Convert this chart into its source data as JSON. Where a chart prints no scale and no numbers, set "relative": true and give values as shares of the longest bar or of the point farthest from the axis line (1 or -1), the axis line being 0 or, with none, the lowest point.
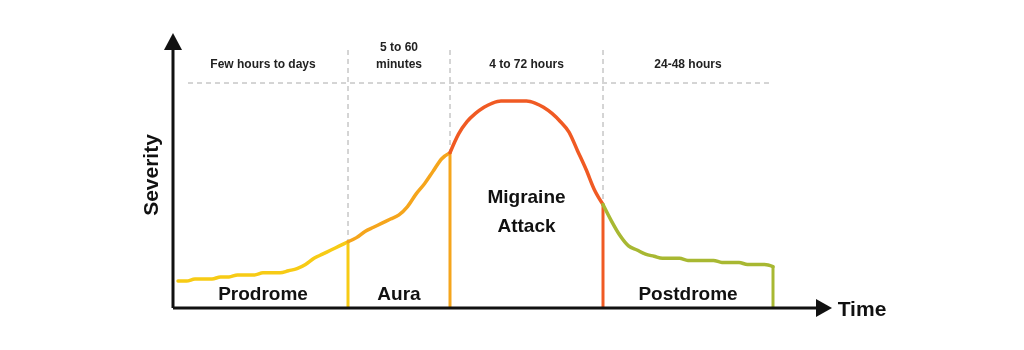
{
  "chart_data": {
    "type": "line",
    "relative": true,
    "xlabel": "Time",
    "ylabel": "Severity",
    "line_style": "solid",
    "grid": true,
    "categories": [
      null,
      null,
      null,
      null,
      null,
      null,
      null,
      null,
      null,
      null,
      null,
      null,
      null,
      null,
      null,
      null,
      null,
      null,
      null,
      null,
      null,
      null,
      null,
      null,
      null,
      null,
      null,
      null,
      null,
      null,
      null,
      null,
      null,
      null,
      null,
      null,
      null,
      null,
      null,
      null,
      null,
      null,
      null,
      null,
      null,
      null,
      null,
      null,
      null,
      null,
      null,
      null,
      null,
      null,
      null,
      null,
      null,
      null,
      null,
      null,
      null,
      null,
      null,
      null,
      null,
      null,
      null,
      null,
      null,
      null,
      null
    ],
    "annotations": [
      "Few hours to days",
      "5 to 60 minutes",
      "4 to 72 hours",
      "24-48 hours"
    ],
    "series": [
      {
        "name": "Prodrome",
        "color": "#f7cb15",
        "values": [
          0.13,
          0.13,
          0.14,
          0.14,
          0.14,
          0.15,
          0.15,
          0.16,
          0.16,
          0.16,
          0.17,
          0.17,
          0.17,
          0.18,
          0.19,
          0.21,
          0.24,
          0.26,
          0.28,
          0.3,
          0.32,
          null,
          null,
          null,
          null,
          null,
          null,
          null,
          null,
          null,
          null,
          null,
          null,
          null,
          null,
          null,
          null,
          null,
          null,
          null,
          null,
          null,
          null,
          null,
          null,
          null,
          null,
          null,
          null,
          null,
          null,
          null,
          null,
          null,
          null,
          null,
          null,
          null,
          null,
          null,
          null,
          null,
          null,
          null,
          null,
          null,
          null,
          null,
          null,
          null,
          null
        ]
      },
      {
        "name": "Aura",
        "color": "#f5a51c",
        "values": [
          null,
          null,
          null,
          null,
          null,
          null,
          null,
          null,
          null,
          null,
          null,
          null,
          null,
          null,
          null,
          null,
          null,
          null,
          null,
          null,
          0.32,
          0.34,
          0.37,
          0.39,
          0.41,
          0.43,
          0.45,
          0.49,
          0.55,
          0.6,
          0.66,
          0.72,
          0.75,
          null,
          null,
          null,
          null,
          null,
          null,
          null,
          null,
          null,
          null,
          null,
          null,
          null,
          null,
          null,
          null,
          null,
          null,
          null,
          null,
          null,
          null,
          null,
          null,
          null,
          null,
          null,
          null,
          null,
          null,
          null,
          null,
          null,
          null,
          null,
          null,
          null,
          null
        ]
      },
      {
        "name": "Migraine Attack",
        "color": "#f05a23",
        "values": [
          null,
          null,
          null,
          null,
          null,
          null,
          null,
          null,
          null,
          null,
          null,
          null,
          null,
          null,
          null,
          null,
          null,
          null,
          null,
          null,
          null,
          null,
          null,
          null,
          null,
          null,
          null,
          null,
          null,
          null,
          null,
          null,
          0.75,
          0.84,
          0.9,
          0.94,
          0.97,
          0.99,
          1,
          1,
          1,
          1,
          0.99,
          0.97,
          0.94,
          0.9,
          0.85,
          0.76,
          0.67,
          0.57,
          0.5,
          null,
          null,
          null,
          null,
          null,
          null,
          null,
          null,
          null,
          null,
          null,
          null,
          null,
          null,
          null,
          null,
          null,
          null,
          null,
          null
        ]
      },
      {
        "name": "Postdrome",
        "color": "#a8b832",
        "values": [
          null,
          null,
          null,
          null,
          null,
          null,
          null,
          null,
          null,
          null,
          null,
          null,
          null,
          null,
          null,
          null,
          null,
          null,
          null,
          null,
          null,
          null,
          null,
          null,
          null,
          null,
          null,
          null,
          null,
          null,
          null,
          null,
          null,
          null,
          null,
          null,
          null,
          null,
          null,
          null,
          null,
          null,
          null,
          null,
          null,
          null,
          null,
          null,
          null,
          null,
          0.5,
          0.42,
          0.35,
          0.3,
          0.28,
          0.26,
          0.25,
          0.24,
          0.24,
          0.24,
          0.23,
          0.23,
          0.23,
          0.23,
          0.22,
          0.22,
          0.22,
          0.21,
          0.21,
          0.21,
          0.2
        ]
      }
    ]
  }
}
